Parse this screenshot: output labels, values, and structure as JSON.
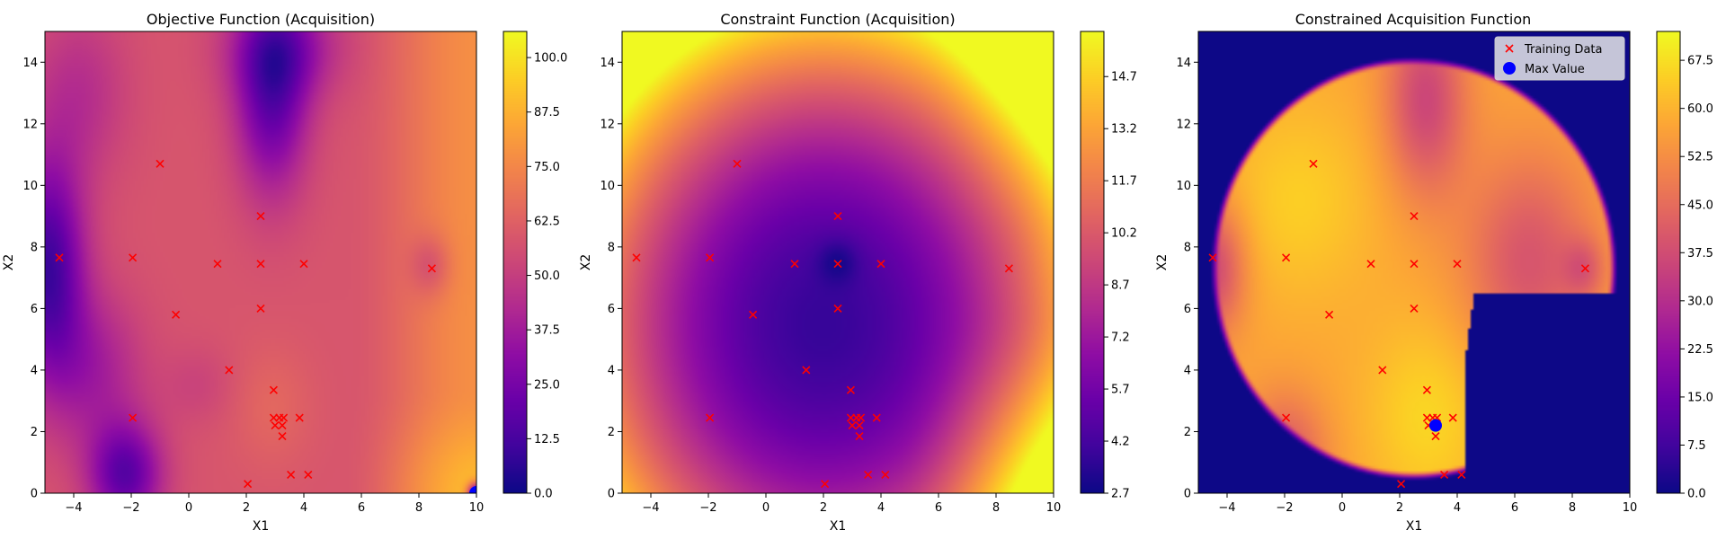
{
  "colors": {
    "cmap": "plasma",
    "marker_training": "#ff0000",
    "marker_max": "#0000ff",
    "axes_edge": "#000000"
  },
  "chart_data": [
    {
      "type": "heatmap",
      "title": "Objective Function (Acquisition)",
      "xlabel": "X1",
      "ylabel": "X2",
      "xlim": [
        -5,
        10
      ],
      "ylim": [
        0,
        15
      ],
      "xticks": [
        -4,
        -2,
        0,
        2,
        4,
        6,
        8,
        10
      ],
      "yticks": [
        0,
        2,
        4,
        6,
        8,
        10,
        12,
        14
      ],
      "colorbar": {
        "min": 0,
        "max": 106,
        "ticks": [
          "0.0",
          "12.5",
          "25.0",
          "37.5",
          "50.0",
          "62.5",
          "75.0",
          "87.5",
          "100.0"
        ]
      },
      "field": "objective",
      "training_points": "shared",
      "extra_points": [
        {
          "x": 10,
          "y": 0,
          "color": "#0000ff"
        }
      ]
    },
    {
      "type": "heatmap",
      "title": "Constraint Function (Acquisition)",
      "xlabel": "X1",
      "ylabel": "X2",
      "xlim": [
        -5,
        10
      ],
      "ylim": [
        0,
        15
      ],
      "xticks": [
        -4,
        -2,
        0,
        2,
        4,
        6,
        8,
        10
      ],
      "yticks": [
        0,
        2,
        4,
        6,
        8,
        10,
        12,
        14
      ],
      "colorbar": {
        "min": 2.7,
        "max": 16.0,
        "ticks": [
          "2.7",
          "4.2",
          "5.7",
          "7.2",
          "8.7",
          "10.2",
          "11.7",
          "13.2",
          "14.7"
        ]
      },
      "field": "constraint",
      "training_points": "shared"
    },
    {
      "type": "heatmap",
      "title": "Constrained Acquisition Function",
      "xlabel": "X1",
      "ylabel": "X2",
      "xlim": [
        -5,
        10
      ],
      "ylim": [
        0,
        15
      ],
      "xticks": [
        -4,
        -2,
        0,
        2,
        4,
        6,
        8,
        10
      ],
      "yticks": [
        0,
        2,
        4,
        6,
        8,
        10,
        12,
        14
      ],
      "colorbar": {
        "min": 0,
        "max": 72,
        "ticks": [
          "0.0",
          "7.5",
          "15.0",
          "22.5",
          "30.0",
          "37.5",
          "45.0",
          "52.5",
          "60.0",
          "67.5"
        ]
      },
      "field": "constrained",
      "training_points": "shared",
      "max_point": {
        "x": 3.25,
        "y": 2.2
      },
      "legend": {
        "position": "upper right",
        "entries": [
          {
            "label": "Training Data",
            "marker": "x",
            "color": "#ff0000"
          },
          {
            "label": "Max Value",
            "marker": "circle",
            "color": "#0000ff"
          }
        ]
      }
    }
  ],
  "training_points": [
    {
      "x": -4.5,
      "y": 7.65
    },
    {
      "x": -1.95,
      "y": 7.65
    },
    {
      "x": -1.0,
      "y": 10.7
    },
    {
      "x": -0.45,
      "y": 5.8
    },
    {
      "x": 1.0,
      "y": 7.45
    },
    {
      "x": 1.4,
      "y": 4.0
    },
    {
      "x": 2.5,
      "y": 9.0
    },
    {
      "x": 2.5,
      "y": 7.45
    },
    {
      "x": 2.5,
      "y": 6.0
    },
    {
      "x": -1.95,
      "y": 2.45
    },
    {
      "x": 2.95,
      "y": 3.35
    },
    {
      "x": 2.95,
      "y": 2.45
    },
    {
      "x": 3.15,
      "y": 2.45
    },
    {
      "x": 3.3,
      "y": 2.45
    },
    {
      "x": 3.0,
      "y": 2.2
    },
    {
      "x": 3.25,
      "y": 2.2
    },
    {
      "x": 3.25,
      "y": 1.85
    },
    {
      "x": 3.85,
      "y": 2.45
    },
    {
      "x": 4.0,
      "y": 7.45
    },
    {
      "x": 3.55,
      "y": 0.6
    },
    {
      "x": 4.15,
      "y": 0.6
    },
    {
      "x": 2.05,
      "y": 0.3
    },
    {
      "x": 8.45,
      "y": 7.3
    }
  ]
}
